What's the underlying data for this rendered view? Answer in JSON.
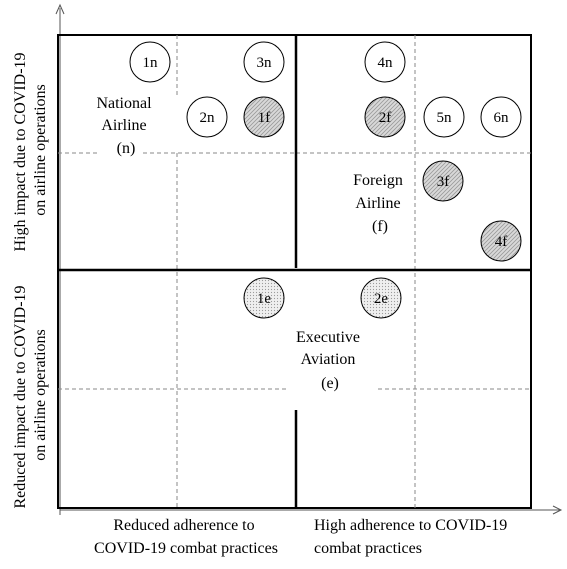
{
  "axes": {
    "y_top_label": [
      "High impact due to COVID-19",
      "on airline operations"
    ],
    "y_bottom_label": [
      "Reduced impact due to COVID-19",
      "on airline operations"
    ],
    "x_left_label": [
      "Reduced adherence to",
      "COVID-19 combat practices"
    ],
    "x_right_label": [
      "High adherence to COVID-19",
      "combat practices"
    ]
  },
  "groups": {
    "national": [
      "National",
      "Airline",
      "(n)"
    ],
    "foreign": [
      "Foreign",
      "Airline",
      "(f)"
    ],
    "executive": [
      "Executive",
      "Aviation",
      "(e)"
    ]
  },
  "nodes": [
    {
      "id": "1n",
      "label": "1n",
      "fill": "white"
    },
    {
      "id": "3n",
      "label": "3n",
      "fill": "white"
    },
    {
      "id": "2n",
      "label": "2n",
      "fill": "white"
    },
    {
      "id": "1f",
      "label": "1f",
      "fill": "hatched"
    },
    {
      "id": "4n",
      "label": "4n",
      "fill": "white"
    },
    {
      "id": "2f",
      "label": "2f",
      "fill": "hatched"
    },
    {
      "id": "5n",
      "label": "5n",
      "fill": "white"
    },
    {
      "id": "6n",
      "label": "6n",
      "fill": "white"
    },
    {
      "id": "3f",
      "label": "3f",
      "fill": "hatched"
    },
    {
      "id": "4f",
      "label": "4f",
      "fill": "hatched"
    },
    {
      "id": "1e",
      "label": "1e",
      "fill": "dotted"
    },
    {
      "id": "2e",
      "label": "2e",
      "fill": "dotted"
    }
  ]
}
